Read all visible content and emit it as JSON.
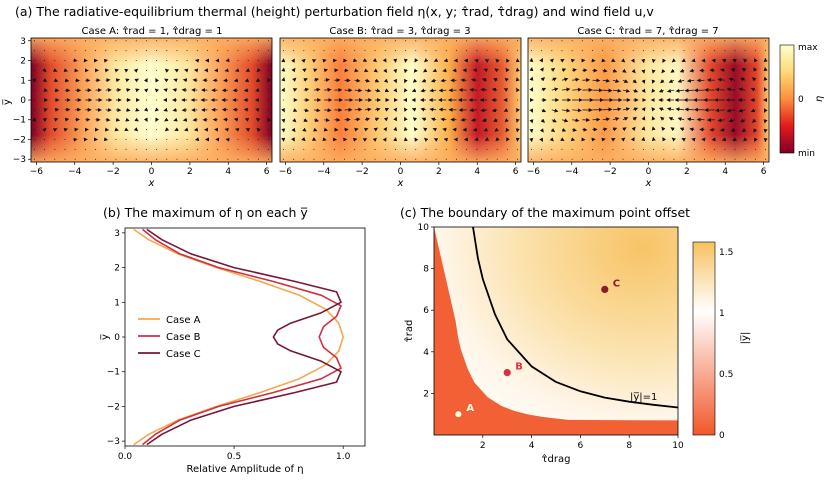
{
  "figure": {
    "title_a": "(a) The radiative-equilibrium thermal (height) perturbation field η(x, y; τ̂rad, τ̂drag) and wind field u,v",
    "title_b": "(b) The maximum of η on each y̅",
    "title_c": "(c) The boundary of the maximum point offset"
  },
  "colorbar_a": {
    "ticks": [
      "max",
      "0",
      "min"
    ],
    "label": "η",
    "colormap": "YlOrRd"
  },
  "colorbar_c": {
    "ticks": [
      "1.5",
      "1",
      "0.5",
      "0"
    ],
    "label": "|y̅|",
    "colors": {
      "low": "#f0582a",
      "mid": "#ffffff",
      "high": "#f7c160"
    }
  },
  "panel_b_legend": [
    "Case A",
    "Case B",
    "Case C"
  ],
  "chart_data": [
    {
      "type": "heatmap",
      "title": "Case A:  τ̂rad = 1, τ̂drag = 1",
      "xlabel": "x",
      "ylabel": "y̅",
      "xlim": [
        -6.28,
        6.28
      ],
      "ylim": [
        -3.14,
        3.14
      ],
      "xticks": [
        -6,
        -4,
        -2,
        0,
        2,
        4,
        6
      ],
      "yticks": [
        3,
        2,
        1,
        0,
        -1,
        -2,
        -3
      ],
      "tau_rad": 1,
      "tau_drag": 1
    },
    {
      "type": "heatmap",
      "title": "Case B:  τ̂rad = 3, τ̂drag = 3",
      "xlabel": "x",
      "ylabel": "",
      "xlim": [
        -6.28,
        6.28
      ],
      "ylim": [
        -3.14,
        3.14
      ],
      "xticks": [
        -6,
        -4,
        -2,
        0,
        2,
        4,
        6
      ],
      "tau_rad": 3,
      "tau_drag": 3
    },
    {
      "type": "heatmap",
      "title": "Case C:  τ̂rad = 7, τ̂drag = 7",
      "xlabel": "x",
      "ylabel": "",
      "xlim": [
        -6.28,
        6.28
      ],
      "ylim": [
        -3.14,
        3.14
      ],
      "xticks": [
        -6,
        -4,
        -2,
        0,
        2,
        4,
        6
      ],
      "tau_rad": 7,
      "tau_drag": 7
    },
    {
      "type": "line",
      "xlabel": "Relative Amplitude of η",
      "ylabel": "y̅",
      "xlim": [
        0,
        1.1
      ],
      "ylim": [
        -3.14,
        3.14
      ],
      "xticks": [
        "0.0",
        "0.5",
        "1.0"
      ],
      "yticks": [
        "3",
        "2",
        "1",
        "0",
        "-1",
        "-2",
        "-3"
      ],
      "legend_position": "center-left",
      "series": [
        {
          "name": "Case A",
          "color": "#f7a64a",
          "y": [
            -3.1,
            -2.8,
            -2.4,
            -2.0,
            -1.6,
            -1.2,
            -0.8,
            -0.4,
            0,
            0.4,
            0.8,
            1.2,
            1.6,
            2.0,
            2.4,
            2.8,
            3.1
          ],
          "x": [
            0.04,
            0.11,
            0.24,
            0.42,
            0.62,
            0.8,
            0.92,
            0.98,
            1.0,
            0.98,
            0.92,
            0.8,
            0.62,
            0.42,
            0.24,
            0.11,
            0.04
          ]
        },
        {
          "name": "Case B",
          "color": "#d0303f",
          "y": [
            -3.1,
            -2.8,
            -2.4,
            -2.0,
            -1.6,
            -1.2,
            -0.9,
            -0.6,
            -0.3,
            0,
            0.3,
            0.6,
            0.9,
            1.2,
            1.6,
            2.0,
            2.4,
            2.8,
            3.1
          ],
          "x": [
            0.08,
            0.14,
            0.25,
            0.43,
            0.68,
            0.9,
            0.99,
            0.97,
            0.91,
            0.89,
            0.91,
            0.97,
            0.99,
            0.9,
            0.68,
            0.43,
            0.25,
            0.14,
            0.08
          ]
        },
        {
          "name": "Case C",
          "color": "#7a1535",
          "y": [
            -3.1,
            -2.8,
            -2.4,
            -2.0,
            -1.6,
            -1.3,
            -1.0,
            -0.7,
            -0.4,
            -0.2,
            0,
            0.2,
            0.4,
            0.7,
            1.0,
            1.3,
            1.6,
            2.0,
            2.4,
            2.8,
            3.1
          ],
          "x": [
            0.1,
            0.17,
            0.3,
            0.5,
            0.78,
            0.97,
            0.99,
            0.9,
            0.76,
            0.7,
            0.68,
            0.7,
            0.76,
            0.9,
            0.99,
            0.97,
            0.78,
            0.5,
            0.3,
            0.17,
            0.1
          ]
        }
      ]
    },
    {
      "type": "heatmap",
      "xlabel": "τ̂drag",
      "ylabel": "τ̂rad",
      "xlim": [
        0,
        10
      ],
      "ylim": [
        0,
        10
      ],
      "xticks": [
        "2",
        "4",
        "6",
        "8",
        "10"
      ],
      "yticks": [
        "10",
        "8",
        "6",
        "4",
        "2"
      ],
      "boundary_label": "|y̅|=1",
      "boundary": {
        "x": [
          1.6,
          1.8,
          2.0,
          2.5,
          3,
          4,
          5,
          6,
          7,
          8,
          9,
          10
        ],
        "y": [
          10,
          8.5,
          7.5,
          5.8,
          4.6,
          3.3,
          2.55,
          2.1,
          1.8,
          1.6,
          1.45,
          1.32
        ]
      },
      "points": [
        {
          "label": "A",
          "x": 1,
          "y": 1,
          "color": "#fffbe0"
        },
        {
          "label": "B",
          "x": 3,
          "y": 3,
          "color": "#d8313f"
        },
        {
          "label": "C",
          "x": 7,
          "y": 7,
          "color": "#8a1c2c"
        }
      ]
    }
  ]
}
